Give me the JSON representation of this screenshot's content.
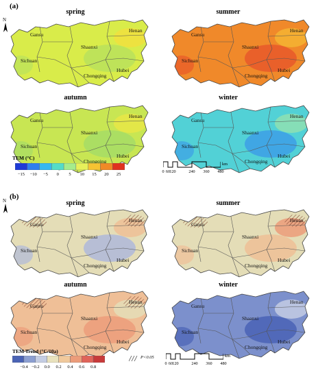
{
  "panel_a": {
    "letter": "(a)",
    "seasons": [
      "spring",
      "summer",
      "autumn",
      "winter"
    ],
    "legend": {
      "title": "TEM (°C)",
      "ticks": [
        "−15",
        "−10",
        "−5",
        "0",
        "5",
        "10",
        "15",
        "20",
        "25"
      ],
      "colors": [
        "#1f3bd6",
        "#2f7fef",
        "#35b8f0",
        "#54dcc8",
        "#a5ec8c",
        "#e7f05a",
        "#f6c332",
        "#f08a26",
        "#e0321e"
      ]
    },
    "season_colors": {
      "spring": [
        "#d9ec4a",
        "#b9e25c",
        "#f0e03e"
      ],
      "summer": [
        "#f0892a",
        "#e8592a",
        "#f4b432"
      ],
      "autumn": [
        "#c8e653",
        "#a6dc66",
        "#e8e646"
      ],
      "winter": [
        "#52d1d6",
        "#3d9fe6",
        "#8fe1b2"
      ]
    }
  },
  "panel_b": {
    "letter": "(b)",
    "seasons": [
      "spring",
      "summer",
      "autumn",
      "winter"
    ],
    "legend": {
      "title": "TEM Trend (°C/10a)",
      "ticks": [
        "−0.4",
        "−0.2",
        "0.0",
        "0.2",
        "0.4",
        "0.6",
        "0.8"
      ],
      "colors": [
        "#4a63b5",
        "#8c9fd1",
        "#c4cde3",
        "#e9e2bd",
        "#f1c99c",
        "#ec9c7a",
        "#e0645a",
        "#c83a3a"
      ]
    },
    "season_colors": {
      "spring": [
        "#e4ddb7",
        "#afb9da",
        "#efbf97"
      ],
      "summer": [
        "#e4ddb7",
        "#efbf97",
        "#ec9c7a"
      ],
      "autumn": [
        "#efbf97",
        "#ec9c7a",
        "#e4ddb7"
      ],
      "winter": [
        "#7c90cc",
        "#4a63b5",
        "#c4cde3"
      ]
    },
    "significance_label": "P<0.05"
  },
  "places": [
    "Gansu",
    "Shaanxi",
    "Henan",
    "Sichuan",
    "Hubei",
    "Chongqing"
  ],
  "north_label": "N",
  "scale_bar": {
    "ticks": [
      "0",
      "60",
      "120",
      "240",
      "360",
      "480"
    ],
    "unit": "km"
  }
}
